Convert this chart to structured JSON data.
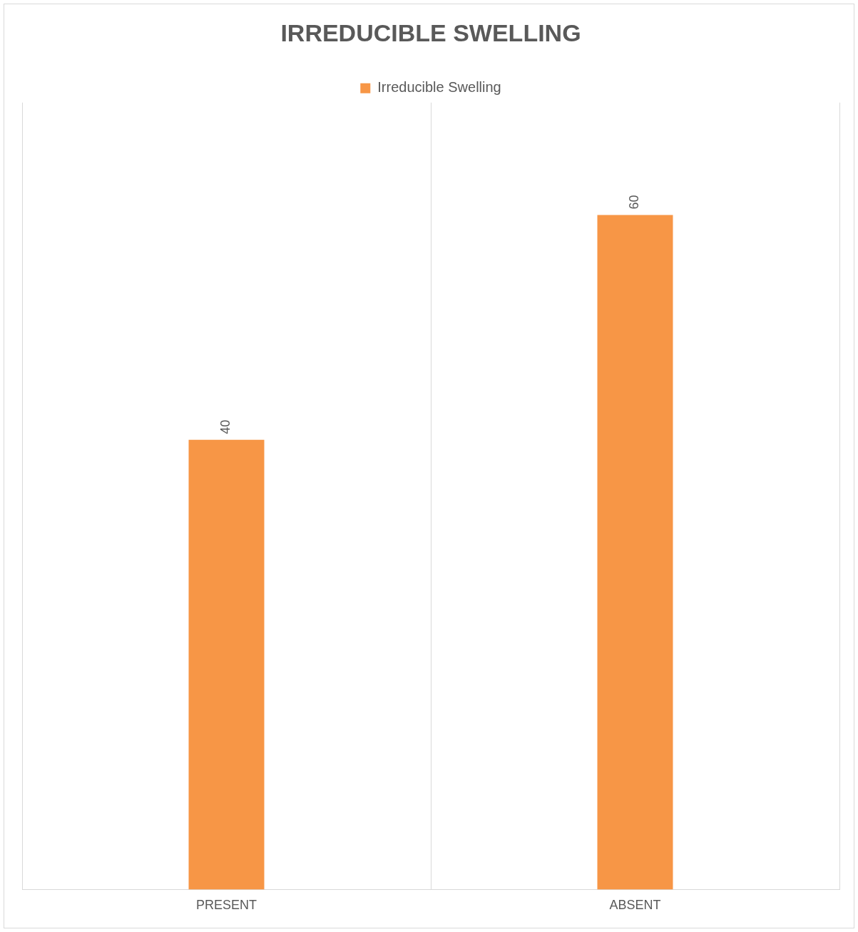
{
  "chart_data": {
    "type": "bar",
    "title": "IRREDUCIBLE SWELLING",
    "categories": [
      "PRESENT",
      "ABSENT"
    ],
    "series": [
      {
        "name": "Irreducible Swelling",
        "color": "#f79646",
        "values": [
          40,
          60
        ]
      }
    ],
    "data_labels": true,
    "grid": "x",
    "legend": "top"
  }
}
